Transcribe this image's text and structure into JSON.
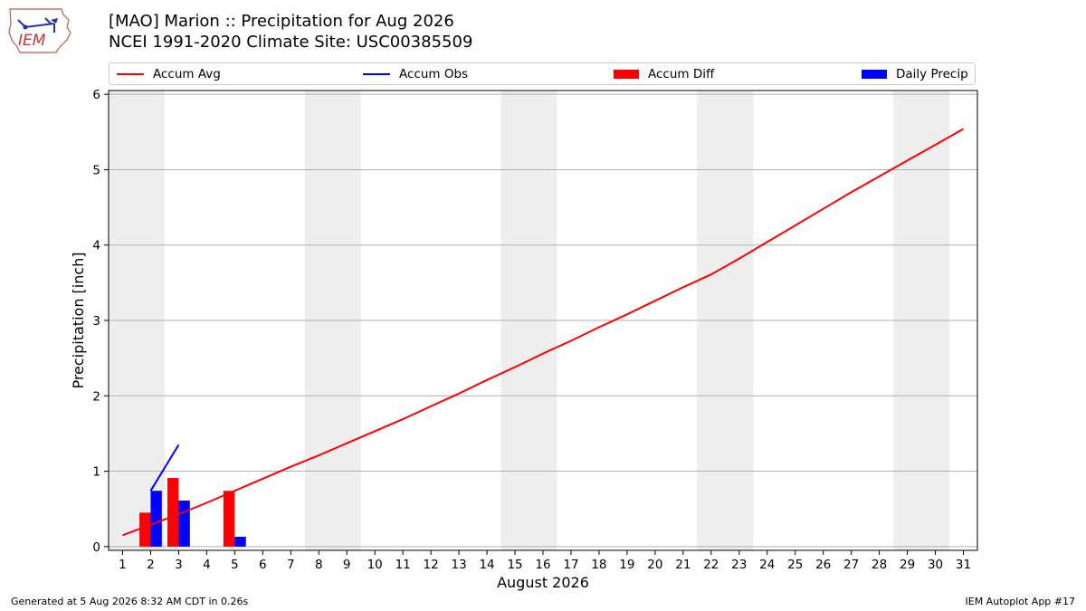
{
  "header": {
    "title_line1": "[MAO] Marion :: Precipitation for Aug 2026",
    "title_line2": "NCEI 1991-2020 Climate Site: USC00385509"
  },
  "logo": {
    "text": "IEM"
  },
  "legend": {
    "items": [
      {
        "label": "Accum Avg",
        "kind": "line",
        "color": "#ff0000"
      },
      {
        "label": "Accum Obs",
        "kind": "line",
        "color": "#0000ff"
      },
      {
        "label": "Accum Diff",
        "kind": "patch",
        "color": "#ff0000"
      },
      {
        "label": "Daily Precip",
        "kind": "patch",
        "color": "#0000ff"
      }
    ]
  },
  "footer": {
    "left": "Generated at 5 Aug 2026 8:32 AM CDT in 0.26s",
    "right": "IEM Autoplot App #17"
  },
  "chart_data": {
    "type": "bar",
    "xlabel": "August 2026",
    "ylabel": "Precipitation [inch]",
    "xlim": [
      0.5,
      31.5
    ],
    "ylim": [
      -0.05,
      6.05
    ],
    "x_ticks": [
      1,
      2,
      3,
      4,
      5,
      6,
      7,
      8,
      9,
      10,
      11,
      12,
      13,
      14,
      15,
      16,
      17,
      18,
      19,
      20,
      21,
      22,
      23,
      24,
      25,
      26,
      27,
      28,
      29,
      30,
      31
    ],
    "y_ticks": [
      0,
      1,
      2,
      3,
      4,
      5,
      6
    ],
    "grid": "horizontal",
    "legend_position": "top",
    "weekend_shading": [
      [
        1,
        2
      ],
      [
        8,
        9
      ],
      [
        15,
        16
      ],
      [
        22,
        23
      ],
      [
        29,
        30
      ]
    ],
    "series": [
      {
        "name": "Accum Avg",
        "kind": "line",
        "color": "#ff0000",
        "x": [
          1,
          2,
          3,
          4,
          5,
          6,
          7,
          8,
          9,
          10,
          11,
          12,
          13,
          14,
          15,
          16,
          17,
          18,
          19,
          20,
          21,
          22,
          23,
          24,
          25,
          26,
          27,
          28,
          29,
          30,
          31
        ],
        "values": [
          0.15,
          0.29,
          0.43,
          0.58,
          0.74,
          0.9,
          1.06,
          1.21,
          1.37,
          1.53,
          1.69,
          1.86,
          2.03,
          2.21,
          2.38,
          2.56,
          2.73,
          2.91,
          3.08,
          3.26,
          3.44,
          3.61,
          3.82,
          4.04,
          4.26,
          4.48,
          4.7,
          4.91,
          5.12,
          5.33,
          5.54
        ]
      },
      {
        "name": "Accum Obs",
        "kind": "line",
        "color": "#0000ff",
        "x": [
          2,
          3
        ],
        "values": [
          0.74,
          1.35
        ]
      },
      {
        "name": "Accum Diff",
        "kind": "bar",
        "color": "#ff0000",
        "x": [
          2,
          3,
          5
        ],
        "values": [
          0.45,
          0.91,
          0.74
        ]
      },
      {
        "name": "Daily Precip",
        "kind": "bar",
        "color": "#0000ff",
        "x": [
          2,
          3,
          5
        ],
        "values": [
          0.74,
          0.61,
          0.13
        ]
      }
    ]
  }
}
